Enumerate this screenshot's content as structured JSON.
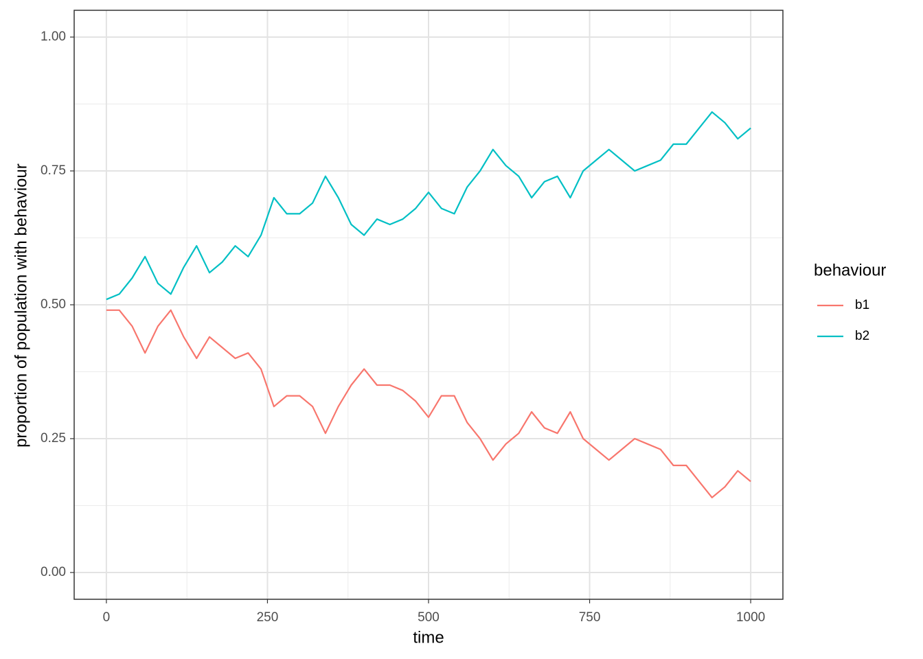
{
  "chart_data": {
    "type": "line",
    "x_label": "time",
    "y_label": "proportion of population with behaviour",
    "legend_title": "behaviour",
    "x": [
      0,
      20,
      40,
      60,
      80,
      100,
      120,
      140,
      160,
      180,
      200,
      220,
      240,
      260,
      280,
      300,
      320,
      340,
      360,
      380,
      400,
      420,
      440,
      460,
      480,
      500,
      520,
      540,
      560,
      580,
      600,
      620,
      640,
      660,
      680,
      700,
      720,
      740,
      760,
      780,
      800,
      820,
      840,
      860,
      880,
      900,
      920,
      940,
      960,
      980,
      1000
    ],
    "series": [
      {
        "name": "b1",
        "color": "#F8766D",
        "values": [
          0.49,
          0.49,
          0.46,
          0.41,
          0.46,
          0.49,
          0.44,
          0.4,
          0.44,
          0.42,
          0.4,
          0.41,
          0.38,
          0.31,
          0.33,
          0.33,
          0.31,
          0.26,
          0.31,
          0.35,
          0.38,
          0.35,
          0.35,
          0.34,
          0.32,
          0.29,
          0.33,
          0.33,
          0.28,
          0.25,
          0.21,
          0.24,
          0.26,
          0.3,
          0.27,
          0.26,
          0.3,
          0.25,
          0.23,
          0.21,
          0.23,
          0.25,
          0.24,
          0.23,
          0.2,
          0.2,
          0.17,
          0.14,
          0.16,
          0.19,
          0.17
        ]
      },
      {
        "name": "b2",
        "color": "#00BFC4",
        "values": [
          0.51,
          0.52,
          0.55,
          0.59,
          0.54,
          0.52,
          0.57,
          0.61,
          0.56,
          0.58,
          0.61,
          0.59,
          0.63,
          0.7,
          0.67,
          0.67,
          0.69,
          0.74,
          0.7,
          0.65,
          0.63,
          0.66,
          0.65,
          0.66,
          0.68,
          0.71,
          0.68,
          0.67,
          0.72,
          0.75,
          0.79,
          0.76,
          0.74,
          0.7,
          0.73,
          0.74,
          0.7,
          0.75,
          0.77,
          0.79,
          0.77,
          0.75,
          0.76,
          0.77,
          0.8,
          0.8,
          0.83,
          0.86,
          0.84,
          0.81,
          0.83
        ]
      }
    ],
    "xlim": [
      -50,
      1050
    ],
    "ylim": [
      -0.05,
      1.05
    ],
    "xticks": [
      0,
      250,
      500,
      750,
      1000
    ],
    "yticks": [
      {
        "value": 0,
        "label": "0.00"
      },
      {
        "value": 0.25,
        "label": "0.25"
      },
      {
        "value": 0.5,
        "label": "0.50"
      },
      {
        "value": 0.75,
        "label": "0.75"
      },
      {
        "value": 1,
        "label": "1.00"
      }
    ],
    "x_minor": [
      125,
      375,
      625,
      875
    ],
    "y_minor": [
      0.125,
      0.375,
      0.625,
      0.875
    ],
    "grid": true
  }
}
